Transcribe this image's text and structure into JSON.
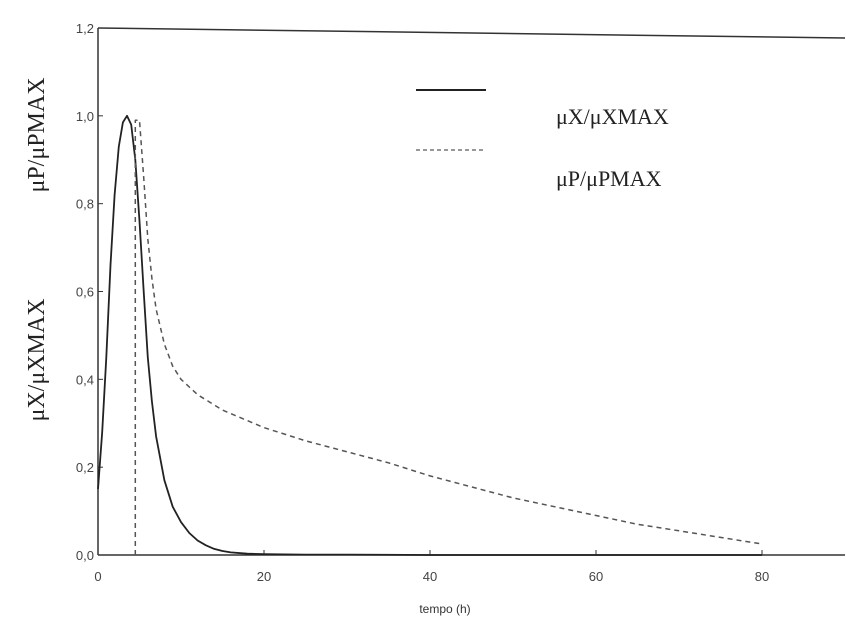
{
  "chart_data": {
    "type": "line",
    "title": "",
    "xlabel": "tempo (h)",
    "ylabel_top": "μP/μPMAX",
    "ylabel_bottom": "μX/μXMAX",
    "xlim": [
      0,
      90
    ],
    "ylim": [
      0,
      1.2
    ],
    "x_ticks": [
      0,
      20,
      40,
      60,
      80
    ],
    "x_tick_labels": [
      "0",
      "20",
      "40",
      "60",
      "80"
    ],
    "y_ticks": [
      0,
      0.2,
      0.4,
      0.6,
      0.8,
      1.0,
      1.2
    ],
    "y_tick_labels": [
      "0,0",
      "0,2",
      "0,4",
      "0,6",
      "0,8",
      "1,0",
      "1,2"
    ],
    "grid": false,
    "legend_position": "top-right",
    "series": [
      {
        "name": "μX/μXMAX",
        "style": "solid",
        "color": "#222222",
        "x": [
          0,
          0.5,
          1,
          1.5,
          2,
          2.5,
          3,
          3.5,
          4,
          4.5,
          5,
          5.5,
          6,
          6.5,
          7,
          8,
          9,
          10,
          11,
          12,
          13,
          14,
          15,
          16,
          18,
          20,
          25,
          30,
          40,
          50,
          60,
          70,
          80
        ],
        "y": [
          0.15,
          0.28,
          0.45,
          0.66,
          0.82,
          0.93,
          0.985,
          1.0,
          0.98,
          0.9,
          0.76,
          0.6,
          0.45,
          0.35,
          0.27,
          0.17,
          0.11,
          0.075,
          0.05,
          0.033,
          0.022,
          0.014,
          0.009,
          0.006,
          0.003,
          0.002,
          0.001,
          0.001,
          0.0,
          0.0,
          0.0,
          0.0,
          0.0
        ]
      },
      {
        "name": "μP/μPMAX",
        "style": "dashed",
        "color": "#555555",
        "x": [
          4.5,
          4.5,
          5.0,
          5.5,
          6,
          6.5,
          7,
          8,
          9,
          10,
          12,
          15,
          20,
          25,
          30,
          35,
          40,
          45,
          50,
          55,
          60,
          65,
          70,
          75,
          80
        ],
        "y": [
          0.0,
          0.99,
          0.99,
          0.86,
          0.72,
          0.63,
          0.56,
          0.48,
          0.43,
          0.4,
          0.365,
          0.33,
          0.29,
          0.26,
          0.235,
          0.21,
          0.18,
          0.155,
          0.13,
          0.11,
          0.09,
          0.07,
          0.055,
          0.04,
          0.025
        ]
      }
    ]
  }
}
